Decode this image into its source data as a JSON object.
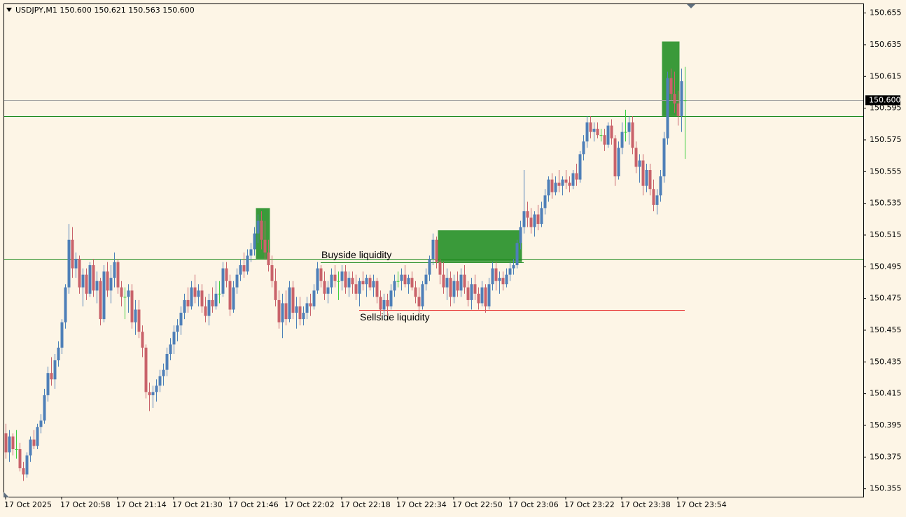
{
  "chart_data": {
    "type": "candlestick",
    "title": "USDJPY,M1  150.600 150.621 150.563 150.600",
    "up_color": "#4e7fb8",
    "down_color": "#c9626a",
    "doji_color": "#3ccf3c",
    "ylim": [
      150.35,
      150.661
    ],
    "yticks": [
      150.655,
      150.635,
      150.615,
      150.595,
      150.575,
      150.555,
      150.535,
      150.515,
      150.495,
      150.475,
      150.455,
      150.435,
      150.415,
      150.395,
      150.375,
      150.355
    ],
    "xtick_labels": [
      "17 Oct 2025",
      "17 Oct 20:58",
      "17 Oct 21:14",
      "17 Oct 21:30",
      "17 Oct 21:46",
      "17 Oct 22:02",
      "17 Oct 22:18",
      "17 Oct 22:34",
      "17 Oct 22:50",
      "17 Oct 23:06",
      "17 Oct 23:22",
      "17 Oct 23:38",
      "17 Oct 23:54"
    ],
    "xtick_every": 16,
    "price_tag": {
      "value": 150.6,
      "label": "150.600"
    },
    "lines": [
      {
        "value": 150.6,
        "color": "#a0a0a0"
      },
      {
        "value": 150.59,
        "color": "#1f8a1f"
      },
      {
        "value": 150.5,
        "color": "#1f8a1f"
      },
      {
        "value": 150.498,
        "color": "#1f8a1f",
        "from": 90,
        "to": 148,
        "label": "Buyside liquidity",
        "label_side": "above"
      },
      {
        "value": 150.468,
        "color": "#e52020",
        "from": 101,
        "to": 194,
        "label": "Sellside liquidity",
        "label_side": "below"
      }
    ],
    "zones": [
      {
        "from": 72,
        "to": 75,
        "high": 150.532,
        "low": 150.5,
        "color": "#3a9a3a"
      },
      {
        "from": 124,
        "to": 147,
        "high": 150.518,
        "low": 150.498,
        "color": "#3a9a3a"
      },
      {
        "from": 188,
        "to": 192,
        "high": 150.637,
        "low": 150.59,
        "color": "#3a9a3a"
      }
    ],
    "candles": [
      [
        150.39,
        150.396,
        150.374,
        150.378
      ],
      [
        150.378,
        150.392,
        150.372,
        150.388
      ],
      [
        150.388,
        150.39,
        150.376,
        150.38
      ],
      [
        150.38,
        150.392,
        150.374,
        150.38
      ],
      [
        150.38,
        150.384,
        150.366,
        150.368
      ],
      [
        150.368,
        150.372,
        150.36,
        150.364
      ],
      [
        150.364,
        150.378,
        150.362,
        150.376
      ],
      [
        150.376,
        150.388,
        150.372,
        150.386
      ],
      [
        150.386,
        150.392,
        150.38,
        150.382
      ],
      [
        150.382,
        150.396,
        150.38,
        150.394
      ],
      [
        150.394,
        150.402,
        150.39,
        150.398
      ],
      [
        150.398,
        150.418,
        150.396,
        150.414
      ],
      [
        150.414,
        150.432,
        150.41,
        150.428
      ],
      [
        150.428,
        150.438,
        150.42,
        150.424
      ],
      [
        150.424,
        150.44,
        150.418,
        150.436
      ],
      [
        150.436,
        150.448,
        150.432,
        150.444
      ],
      [
        150.444,
        150.462,
        150.44,
        150.46
      ],
      [
        150.46,
        150.484,
        150.456,
        150.482
      ],
      [
        150.482,
        150.522,
        150.478,
        150.512
      ],
      [
        150.512,
        150.52,
        150.488,
        150.494
      ],
      [
        150.494,
        150.504,
        150.488,
        150.5
      ],
      [
        150.5,
        150.502,
        150.478,
        150.482
      ],
      [
        150.482,
        150.494,
        150.47,
        150.49
      ],
      [
        150.49,
        150.494,
        150.474,
        150.478
      ],
      [
        150.478,
        150.498,
        150.476,
        150.496
      ],
      [
        150.496,
        150.5,
        150.476,
        150.48
      ],
      [
        150.48,
        150.492,
        150.472,
        150.486
      ],
      [
        150.486,
        150.488,
        150.458,
        150.462
      ],
      [
        150.462,
        150.496,
        150.46,
        150.492
      ],
      [
        150.492,
        150.498,
        150.476,
        150.48
      ],
      [
        150.48,
        150.496,
        150.472,
        150.488
      ],
      [
        150.488,
        150.504,
        150.482,
        150.498
      ],
      [
        150.498,
        150.5,
        150.478,
        150.482
      ],
      [
        150.482,
        150.486,
        150.47,
        150.476
      ],
      [
        150.476,
        150.482,
        150.462,
        150.476
      ],
      [
        150.476,
        150.484,
        150.466,
        150.48
      ],
      [
        150.48,
        150.484,
        150.456,
        150.46
      ],
      [
        150.46,
        150.474,
        150.452,
        150.468
      ],
      [
        150.468,
        150.474,
        150.45,
        150.454
      ],
      [
        150.454,
        150.458,
        150.438,
        150.444
      ],
      [
        150.444,
        150.446,
        150.412,
        150.416
      ],
      [
        150.416,
        150.422,
        150.404,
        150.414
      ],
      [
        150.414,
        150.42,
        150.406,
        150.416
      ],
      [
        150.416,
        150.424,
        150.41,
        150.42
      ],
      [
        150.42,
        150.43,
        150.416,
        150.426
      ],
      [
        150.426,
        150.434,
        150.42,
        150.43
      ],
      [
        150.43,
        150.444,
        150.426,
        150.44
      ],
      [
        150.44,
        150.45,
        150.436,
        150.446
      ],
      [
        150.446,
        150.458,
        150.44,
        150.454
      ],
      [
        150.454,
        150.462,
        150.448,
        150.458
      ],
      [
        150.458,
        150.47,
        150.452,
        150.466
      ],
      [
        150.466,
        150.478,
        150.462,
        150.474
      ],
      [
        150.474,
        150.482,
        150.466,
        150.47
      ],
      [
        150.47,
        150.486,
        150.468,
        150.482
      ],
      [
        150.482,
        150.49,
        150.472,
        150.476
      ],
      [
        150.476,
        150.484,
        150.47,
        150.48
      ],
      [
        150.48,
        150.484,
        150.466,
        150.47
      ],
      [
        150.47,
        150.476,
        150.46,
        150.464
      ],
      [
        150.464,
        150.478,
        150.458,
        150.474
      ],
      [
        150.474,
        150.482,
        150.466,
        150.47
      ],
      [
        150.47,
        150.486,
        150.468,
        150.478
      ],
      [
        150.478,
        150.486,
        150.472,
        150.478
      ],
      [
        150.478,
        150.498,
        150.476,
        150.494
      ],
      [
        150.494,
        150.498,
        150.482,
        150.486
      ],
      [
        150.486,
        150.49,
        150.464,
        150.468
      ],
      [
        150.468,
        150.486,
        150.466,
        150.482
      ],
      [
        150.482,
        150.494,
        150.478,
        150.49
      ],
      [
        150.49,
        150.5,
        150.486,
        150.496
      ],
      [
        150.496,
        150.504,
        150.488,
        150.492
      ],
      [
        150.492,
        150.506,
        150.49,
        150.502
      ],
      [
        150.502,
        150.51,
        150.498,
        150.506
      ],
      [
        150.506,
        150.52,
        150.502,
        150.516
      ],
      [
        150.516,
        150.528,
        150.51,
        150.524
      ],
      [
        150.524,
        150.53,
        150.506,
        150.512
      ],
      [
        150.512,
        150.524,
        150.5,
        150.504
      ],
      [
        150.504,
        150.512,
        150.492,
        150.496
      ],
      [
        150.496,
        150.502,
        150.482,
        150.486
      ],
      [
        150.486,
        150.494,
        150.47,
        150.474
      ],
      [
        150.474,
        150.48,
        150.456,
        150.46
      ],
      [
        150.46,
        150.478,
        150.45,
        150.472
      ],
      [
        150.472,
        150.48,
        150.458,
        150.462
      ],
      [
        150.462,
        150.486,
        150.46,
        150.482
      ],
      [
        150.482,
        150.486,
        150.462,
        150.466
      ],
      [
        150.466,
        150.476,
        150.456,
        150.47
      ],
      [
        150.47,
        150.476,
        150.458,
        150.462
      ],
      [
        150.462,
        150.47,
        150.458,
        150.466
      ],
      [
        150.466,
        150.476,
        150.462,
        150.472
      ],
      [
        150.472,
        150.478,
        150.464,
        150.47
      ],
      [
        150.47,
        150.484,
        150.468,
        150.48
      ],
      [
        150.48,
        150.498,
        150.478,
        150.494
      ],
      [
        150.494,
        150.496,
        150.482,
        150.486
      ],
      [
        150.486,
        150.492,
        150.474,
        150.478
      ],
      [
        150.478,
        150.486,
        150.472,
        150.482
      ],
      [
        150.482,
        150.494,
        150.478,
        150.49
      ],
      [
        150.49,
        150.496,
        150.482,
        150.486
      ],
      [
        150.486,
        150.492,
        150.474,
        150.486
      ],
      [
        150.486,
        150.496,
        150.48,
        150.492
      ],
      [
        150.492,
        150.496,
        150.478,
        150.482
      ],
      [
        150.482,
        150.492,
        150.476,
        150.488
      ],
      [
        150.488,
        150.492,
        150.478,
        150.484
      ],
      [
        150.484,
        150.49,
        150.474,
        150.478
      ],
      [
        150.478,
        150.488,
        150.47,
        150.486
      ],
      [
        150.486,
        150.492,
        150.48,
        150.484
      ],
      [
        150.484,
        150.49,
        150.476,
        150.488
      ],
      [
        150.488,
        150.49,
        150.48,
        150.482
      ],
      [
        150.482,
        150.49,
        150.476,
        150.486
      ],
      [
        150.486,
        150.488,
        150.472,
        150.476
      ],
      [
        150.476,
        150.48,
        150.464,
        150.468
      ],
      [
        150.468,
        150.478,
        150.462,
        150.474
      ],
      [
        150.474,
        150.478,
        150.464,
        150.47
      ],
      [
        150.47,
        150.484,
        150.468,
        150.48
      ],
      [
        150.48,
        150.49,
        150.476,
        150.486
      ],
      [
        150.486,
        150.492,
        150.482,
        150.486
      ],
      [
        150.486,
        150.494,
        150.48,
        150.49
      ],
      [
        150.49,
        150.496,
        150.482,
        150.484
      ],
      [
        150.484,
        150.49,
        150.478,
        150.488
      ],
      [
        150.488,
        150.492,
        150.48,
        150.482
      ],
      [
        150.482,
        150.486,
        150.472,
        150.476
      ],
      [
        150.476,
        150.482,
        150.466,
        150.47
      ],
      [
        150.47,
        150.486,
        150.468,
        150.484
      ],
      [
        150.484,
        150.494,
        150.48,
        150.49
      ],
      [
        150.49,
        150.502,
        150.486,
        150.5
      ],
      [
        150.5,
        150.516,
        150.496,
        150.512
      ],
      [
        150.512,
        150.514,
        150.494,
        150.498
      ],
      [
        150.498,
        150.5,
        150.484,
        150.49
      ],
      [
        150.49,
        150.498,
        150.478,
        150.482
      ],
      [
        150.482,
        150.494,
        150.474,
        150.488
      ],
      [
        150.488,
        150.492,
        150.47,
        150.476
      ],
      [
        150.476,
        150.49,
        150.472,
        150.486
      ],
      [
        150.486,
        150.492,
        150.476,
        150.48
      ],
      [
        150.48,
        150.494,
        150.476,
        150.49
      ],
      [
        150.49,
        150.496,
        150.478,
        150.482
      ],
      [
        150.482,
        150.486,
        150.47,
        150.474
      ],
      [
        150.474,
        150.488,
        150.468,
        150.484
      ],
      [
        150.484,
        150.49,
        150.474,
        150.478
      ],
      [
        150.478,
        150.482,
        150.468,
        150.472
      ],
      [
        150.472,
        150.486,
        150.47,
        150.482
      ],
      [
        150.482,
        150.484,
        150.466,
        150.47
      ],
      [
        150.47,
        150.488,
        150.468,
        150.484
      ],
      [
        150.484,
        150.498,
        150.48,
        150.494
      ],
      [
        150.494,
        150.498,
        150.48,
        150.486
      ],
      [
        150.486,
        150.492,
        150.478,
        150.488
      ],
      [
        150.488,
        150.492,
        150.48,
        150.484
      ],
      [
        150.484,
        150.494,
        150.482,
        150.49
      ],
      [
        150.49,
        150.498,
        150.486,
        150.494
      ],
      [
        150.494,
        150.5,
        150.49,
        150.496
      ],
      [
        150.496,
        150.512,
        150.494,
        150.51
      ],
      [
        150.51,
        150.524,
        150.506,
        150.52
      ],
      [
        150.52,
        150.556,
        150.516,
        150.53
      ],
      [
        150.53,
        150.536,
        150.52,
        150.526
      ],
      [
        150.526,
        150.532,
        150.516,
        150.52
      ],
      [
        150.52,
        150.53,
        150.514,
        150.528
      ],
      [
        150.528,
        150.534,
        150.518,
        150.522
      ],
      [
        150.522,
        150.536,
        150.52,
        150.532
      ],
      [
        150.532,
        150.544,
        150.528,
        150.54
      ],
      [
        150.54,
        150.552,
        150.536,
        150.55
      ],
      [
        150.55,
        150.554,
        150.538,
        150.542
      ],
      [
        150.542,
        150.552,
        150.54,
        150.548
      ],
      [
        150.548,
        150.556,
        150.542,
        150.546
      ],
      [
        150.546,
        150.552,
        150.54,
        150.55
      ],
      [
        150.55,
        150.556,
        150.544,
        150.548
      ],
      [
        150.548,
        150.552,
        150.542,
        150.546
      ],
      [
        150.546,
        150.556,
        150.544,
        150.554
      ],
      [
        150.554,
        150.56,
        150.546,
        150.55
      ],
      [
        150.55,
        150.568,
        150.548,
        150.566
      ],
      [
        150.566,
        150.578,
        150.562,
        150.574
      ],
      [
        150.574,
        150.59,
        150.57,
        150.586
      ],
      [
        150.586,
        150.59,
        150.576,
        150.58
      ],
      [
        150.58,
        150.586,
        150.574,
        150.582
      ],
      [
        150.582,
        150.586,
        150.576,
        150.578
      ],
      [
        150.578,
        150.582,
        150.574,
        150.578
      ],
      [
        150.578,
        150.582,
        150.568,
        150.572
      ],
      [
        150.572,
        150.586,
        150.57,
        150.584
      ],
      [
        150.584,
        150.588,
        150.572,
        150.576
      ],
      [
        150.576,
        150.578,
        150.546,
        150.552
      ],
      [
        150.552,
        150.574,
        150.55,
        150.57
      ],
      [
        150.57,
        150.586,
        150.566,
        150.58
      ],
      [
        150.58,
        150.594,
        150.574,
        150.58
      ],
      [
        150.58,
        150.59,
        150.572,
        150.586
      ],
      [
        150.586,
        150.59,
        150.566,
        150.57
      ],
      [
        150.57,
        150.574,
        150.554,
        150.558
      ],
      [
        150.558,
        150.566,
        150.548,
        150.562
      ],
      [
        150.562,
        150.566,
        150.54,
        150.546
      ],
      [
        150.546,
        150.56,
        150.542,
        150.556
      ],
      [
        150.556,
        150.56,
        150.54,
        150.544
      ],
      [
        150.544,
        150.55,
        150.53,
        150.534
      ],
      [
        150.534,
        150.544,
        150.528,
        150.54
      ],
      [
        150.54,
        150.556,
        150.536,
        150.552
      ],
      [
        150.552,
        150.58,
        150.548,
        150.576
      ],
      [
        150.576,
        150.618,
        150.572,
        150.614
      ],
      [
        150.614,
        150.62,
        150.6,
        150.604
      ],
      [
        150.604,
        150.618,
        150.592,
        150.598
      ],
      [
        150.598,
        150.606,
        150.584,
        150.59
      ],
      [
        150.59,
        150.62,
        150.58,
        150.612
      ],
      [
        150.6,
        150.621,
        150.563,
        150.6
      ]
    ]
  }
}
